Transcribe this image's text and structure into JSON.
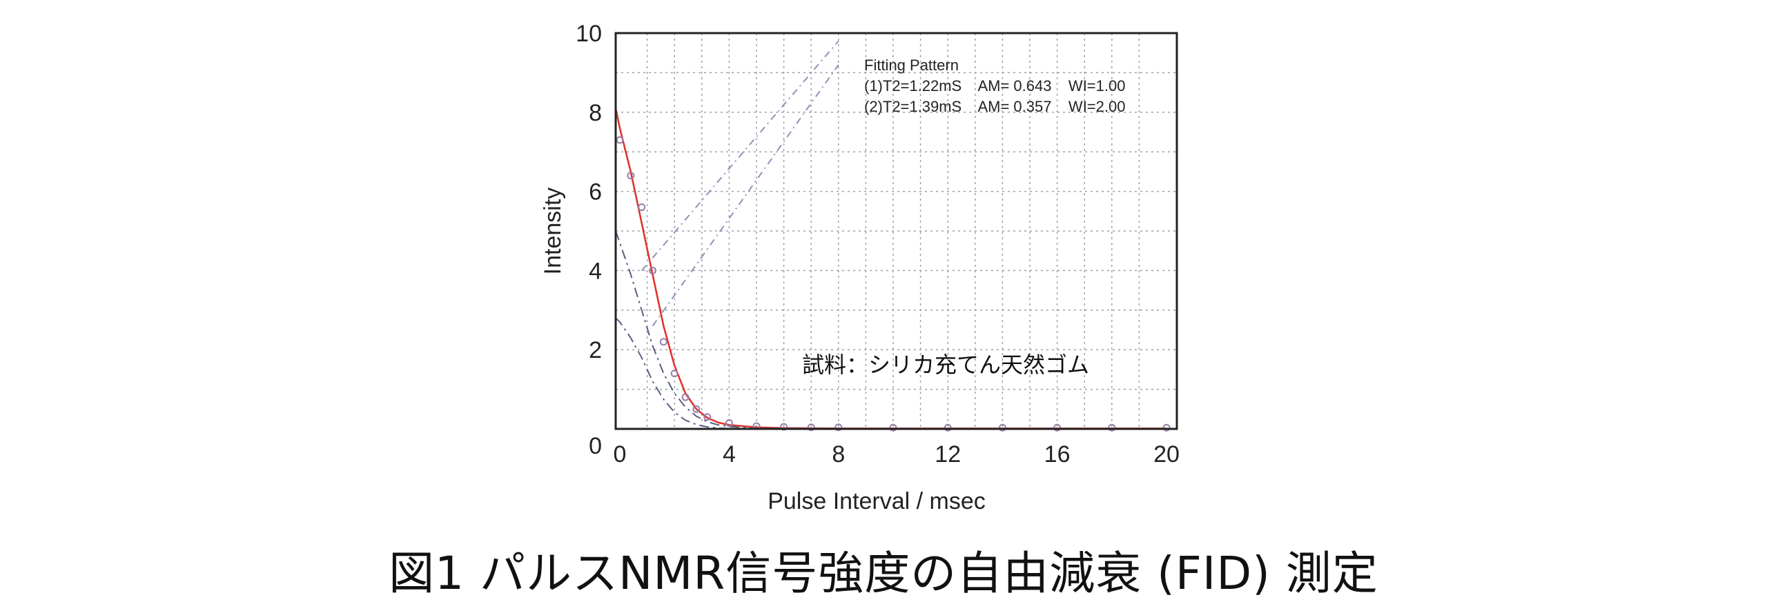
{
  "chart_data": {
    "type": "line",
    "xlabel": "Pulse Interval / msec",
    "ylabel": "Intensity",
    "xlim": [
      0,
      20
    ],
    "ylim": [
      0,
      10
    ],
    "x_ticks": [
      "0",
      "4",
      "8",
      "12",
      "16",
      "20"
    ],
    "y_ticks": [
      "0",
      "2",
      "4",
      "6",
      "8",
      "10"
    ],
    "grid": "dotted",
    "fitting_pattern": {
      "title": "Fitting Pattern",
      "lines": [
        "(1)T2=1.22mS    AM= 0.643    WI=1.00",
        "(2)T2=1.39mS    AM= 0.357    WI=2.00"
      ]
    },
    "sample_label": "試料：シリカ充てん天然ゴム",
    "series": [
      {
        "role": "measured points",
        "x": [
          0.0,
          0.4,
          0.8,
          1.2,
          1.6,
          2.0,
          2.4,
          2.8,
          3.2,
          4.0,
          5.0,
          6.0,
          7.0,
          8.0,
          10.0,
          12.0,
          14.0,
          16.0,
          18.0,
          20.0
        ],
        "y": [
          7.3,
          6.4,
          5.6,
          4.0,
          2.2,
          1.4,
          0.8,
          0.5,
          0.3,
          0.15,
          0.07,
          0.05,
          0.04,
          0.04,
          0.03,
          0.03,
          0.03,
          0.03,
          0.03,
          0.03
        ]
      },
      {
        "role": "total fit",
        "color": "#e0342f",
        "x": [
          -0.2,
          0.0,
          0.4,
          0.8,
          1.2,
          1.6,
          2.0,
          2.4,
          2.8,
          3.2,
          3.6,
          4.0,
          5.0,
          6.0,
          8.0,
          12.0,
          20.0
        ],
        "y": [
          8.1,
          7.6,
          6.5,
          5.2,
          3.9,
          2.6,
          1.6,
          0.9,
          0.5,
          0.28,
          0.16,
          0.1,
          0.04,
          0.02,
          0.01,
          0.01,
          0.01
        ]
      },
      {
        "role": "component (1)",
        "color": "#556080",
        "x": [
          -0.2,
          0.0,
          0.4,
          0.8,
          1.2,
          1.6,
          2.0,
          2.4,
          2.8,
          3.2,
          3.6,
          4.0,
          5.0,
          6.0,
          8.0
        ],
        "y": [
          5.0,
          4.7,
          3.9,
          3.0,
          2.1,
          1.4,
          0.9,
          0.55,
          0.32,
          0.18,
          0.1,
          0.06,
          0.02,
          0.01,
          0.0
        ]
      },
      {
        "role": "component (2)",
        "color": "#556080",
        "x": [
          -0.2,
          0.0,
          0.4,
          0.8,
          1.2,
          1.6,
          2.0,
          2.4,
          2.8,
          3.2,
          3.6,
          4.0,
          5.0,
          6.0
        ],
        "y": [
          2.8,
          2.7,
          2.3,
          1.8,
          1.2,
          0.75,
          0.42,
          0.22,
          0.11,
          0.05,
          0.02,
          0.01,
          0.0,
          0.0
        ]
      },
      {
        "role": "linear plot (1)",
        "color": "#8a93b8",
        "x": [
          0.8,
          8.0
        ],
        "y": [
          4.0,
          9.8
        ]
      },
      {
        "role": "linear plot (2)",
        "color": "#8a93b8",
        "x": [
          1.2,
          8.0
        ],
        "y": [
          2.6,
          9.2
        ]
      }
    ]
  },
  "caption": "図1  パルスNMR信号強度の自由減衰 (FID) 測定"
}
